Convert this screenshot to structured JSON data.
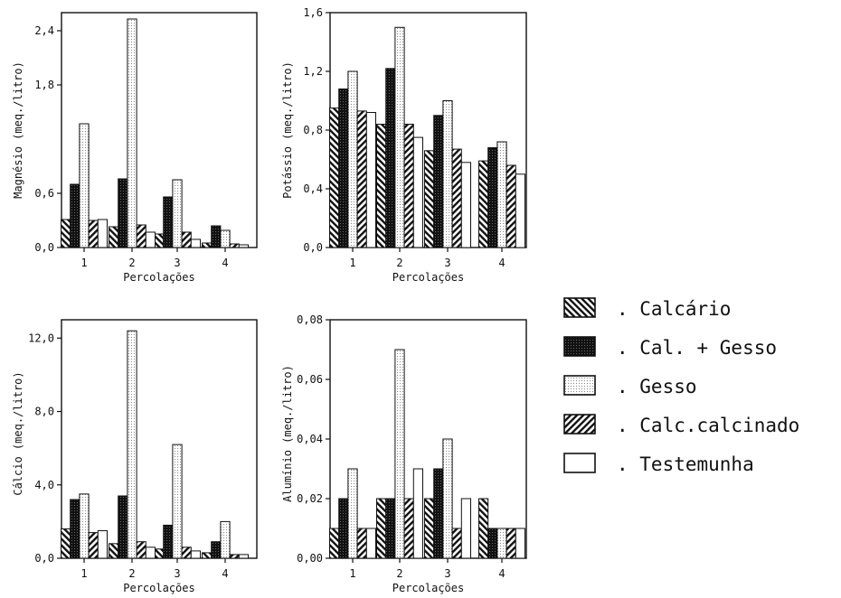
{
  "chart_data": [
    {
      "type": "bar",
      "panel": "magnesio",
      "ylabel": "Magnésio (meq./litro)",
      "xlabel": "Percolações",
      "categories": [
        "1",
        "2",
        "3",
        "4"
      ],
      "ylim": [
        0,
        2.6
      ],
      "yticks": [
        "0,0",
        "0,6",
        "1,8",
        "2,4"
      ],
      "ytick_values": [
        0,
        0.6,
        1.8,
        2.4
      ],
      "series": [
        {
          "name": "Calcário",
          "values": [
            0.31,
            0.23,
            0.15,
            0.05
          ]
        },
        {
          "name": "Cal. + Gesso",
          "values": [
            0.7,
            0.76,
            0.56,
            0.24
          ]
        },
        {
          "name": "Gesso",
          "values": [
            1.37,
            2.53,
            0.75,
            0.19
          ]
        },
        {
          "name": "Calc.calcinado",
          "values": [
            0.3,
            0.25,
            0.17,
            0.04
          ]
        },
        {
          "name": "Testemunha",
          "values": [
            0.31,
            0.17,
            0.09,
            0.03
          ]
        }
      ]
    },
    {
      "type": "bar",
      "panel": "potassio",
      "ylabel": "Potássio (meq./litro)",
      "xlabel": "Percolações",
      "categories": [
        "1",
        "2",
        "3",
        "4"
      ],
      "ylim": [
        0,
        1.6
      ],
      "yticks": [
        "0,0",
        "0,4",
        "0,8",
        "1,2",
        "1,6"
      ],
      "ytick_values": [
        0,
        0.4,
        0.8,
        1.2,
        1.6
      ],
      "series": [
        {
          "name": "Calcário",
          "values": [
            0.95,
            0.84,
            0.66,
            0.59
          ]
        },
        {
          "name": "Cal. + Gesso",
          "values": [
            1.08,
            1.22,
            0.9,
            0.68
          ]
        },
        {
          "name": "Gesso",
          "values": [
            1.2,
            1.5,
            1.0,
            0.72
          ]
        },
        {
          "name": "Calc.calcinado",
          "values": [
            0.93,
            0.84,
            0.67,
            0.56
          ]
        },
        {
          "name": "Testemunha",
          "values": [
            0.92,
            0.75,
            0.58,
            0.5
          ]
        }
      ]
    },
    {
      "type": "bar",
      "panel": "calcio",
      "ylabel": "Cálcio (meq./litro)",
      "xlabel": "Percolações",
      "categories": [
        "1",
        "2",
        "3",
        "4"
      ],
      "ylim": [
        0,
        13
      ],
      "yticks": [
        "0,0",
        "4,0",
        "8,0",
        "12,0"
      ],
      "ytick_values": [
        0,
        4,
        8,
        12
      ],
      "series": [
        {
          "name": "Calcário",
          "values": [
            1.6,
            0.8,
            0.5,
            0.3
          ]
        },
        {
          "name": "Cal. + Gesso",
          "values": [
            3.2,
            3.4,
            1.8,
            0.9
          ]
        },
        {
          "name": "Gesso",
          "values": [
            3.5,
            12.4,
            6.2,
            2.0
          ]
        },
        {
          "name": "Calc.calcinado",
          "values": [
            1.4,
            0.9,
            0.6,
            0.2
          ]
        },
        {
          "name": "Testemunha",
          "values": [
            1.5,
            0.6,
            0.4,
            0.2
          ]
        }
      ]
    },
    {
      "type": "bar",
      "panel": "aluminio",
      "ylabel": "Alumínio (meq./litro)",
      "xlabel": "Percolações",
      "categories": [
        "1",
        "2",
        "3",
        "4"
      ],
      "ylim": [
        0,
        0.08
      ],
      "yticks": [
        "0,00",
        "0,02",
        "0,04",
        "0,06",
        "0,08"
      ],
      "ytick_values": [
        0,
        0.02,
        0.04,
        0.06,
        0.08
      ],
      "series": [
        {
          "name": "Calcário",
          "values": [
            0.01,
            0.02,
            0.02,
            0.02
          ]
        },
        {
          "name": "Cal. + Gesso",
          "values": [
            0.02,
            0.02,
            0.03,
            0.01
          ]
        },
        {
          "name": "Gesso",
          "values": [
            0.03,
            0.07,
            0.04,
            0.01
          ]
        },
        {
          "name": "Calc.calcinado",
          "values": [
            0.01,
            0.02,
            0.01,
            0.01
          ]
        },
        {
          "name": "Testemunha",
          "values": [
            0.01,
            0.03,
            0.02,
            0.01
          ]
        }
      ]
    }
  ],
  "legend": {
    "items": [
      {
        "label": ". Calcário",
        "pattern": "hatch-back"
      },
      {
        "label": ". Cal. + Gesso",
        "pattern": "dark-dots"
      },
      {
        "label": ". Gesso",
        "pattern": "light-dots"
      },
      {
        "label": ". Calc.calcinado",
        "pattern": "hatch-fwd"
      },
      {
        "label": ". Testemunha",
        "pattern": "empty"
      }
    ]
  },
  "colors": {
    "ink": "#111111",
    "paper": "#ffffff"
  }
}
